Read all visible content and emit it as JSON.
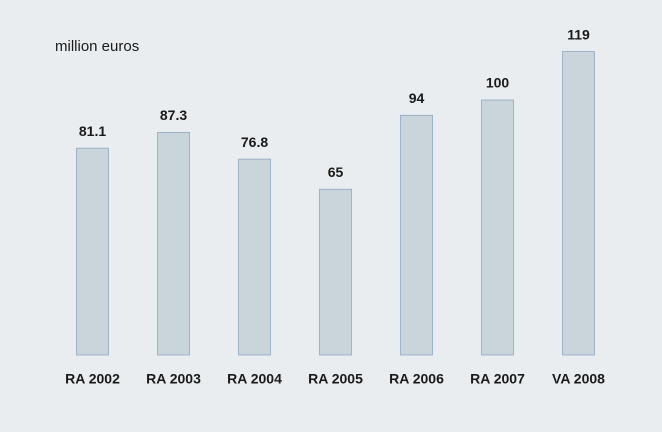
{
  "chart_data": {
    "type": "bar",
    "unit_label": "million euros",
    "categories": [
      "RA 2002",
      "RA 2003",
      "RA 2004",
      "RA 2005",
      "RA 2006",
      "RA 2007",
      "VA 2008"
    ],
    "values": [
      81.1,
      87.3,
      76.8,
      65,
      94,
      100,
      119
    ],
    "color": "#c9d4db",
    "edge_color": "#8fa6c4",
    "ylim": [
      0,
      120
    ]
  }
}
